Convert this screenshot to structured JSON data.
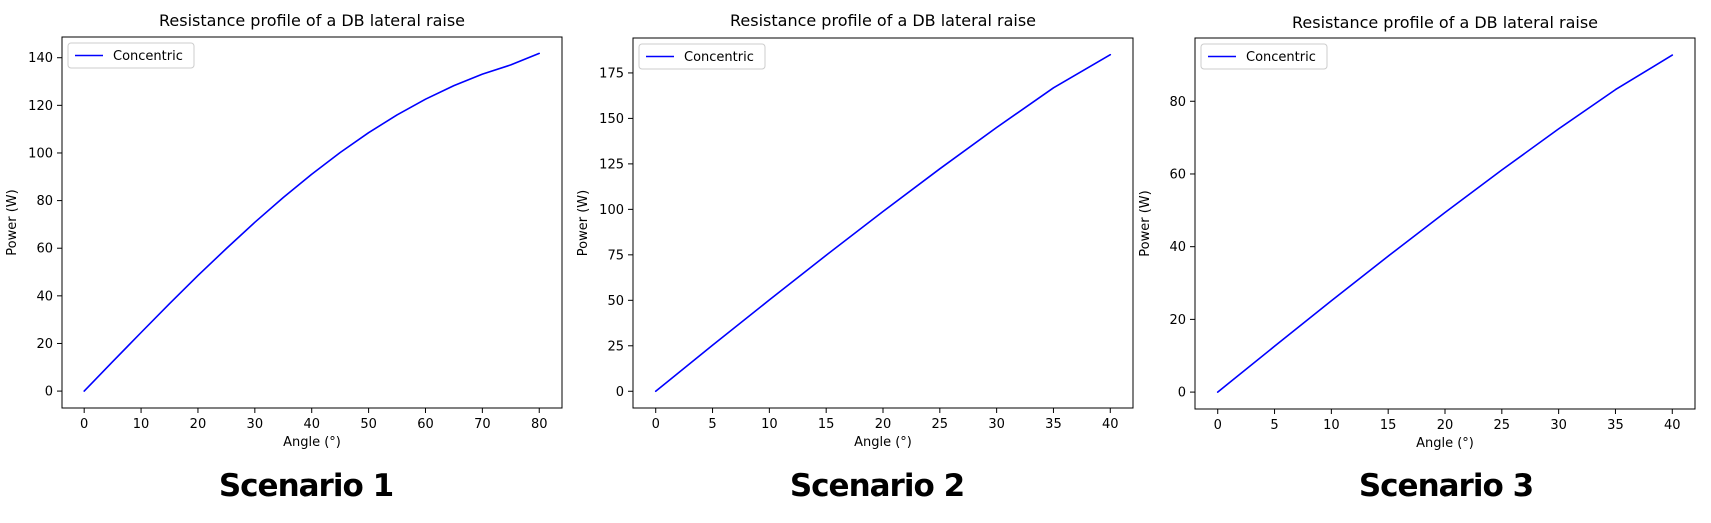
{
  "figure_title": "",
  "chart_data": [
    {
      "type": "line",
      "title": "Resistance profile of a DB lateral raise",
      "xlabel": "Angle (°)",
      "ylabel": "Power (W)",
      "xlim": [
        -3.9,
        84
      ],
      "ylim": [
        -7.1,
        148.7
      ],
      "xticks": [
        0,
        10,
        20,
        30,
        40,
        50,
        60,
        70,
        80
      ],
      "yticks": [
        0,
        20,
        40,
        60,
        80,
        100,
        120,
        140
      ],
      "legend": "upper left",
      "grid": false,
      "scenario_label": "Scenario 1",
      "series": [
        {
          "name": "Concentric",
          "color": "#0000ff",
          "x": [
            0,
            5,
            10,
            15,
            20,
            25,
            30,
            35,
            40,
            45,
            50,
            55,
            60,
            65,
            70,
            75,
            80
          ],
          "y": [
            0,
            12.35,
            24.6,
            36.7,
            48.5,
            59.9,
            70.9,
            81.3,
            91.1,
            100.2,
            108.5,
            116.0,
            122.6,
            128.3,
            133.1,
            137.0,
            141.8
          ]
        }
      ]
    },
    {
      "type": "line",
      "title": "Resistance profile of a DB lateral raise",
      "xlabel": "Angle (°)",
      "ylabel": "Power (W)",
      "xlim": [
        -2,
        42
      ],
      "ylim": [
        -9.2,
        194.2
      ],
      "xticks": [
        0,
        5,
        10,
        15,
        20,
        25,
        30,
        35,
        40
      ],
      "yticks": [
        0,
        25,
        50,
        75,
        100,
        125,
        150,
        175
      ],
      "legend": "upper left",
      "grid": false,
      "scenario_label": "Scenario 2",
      "series": [
        {
          "name": "Concentric",
          "color": "#0000ff",
          "x": [
            0,
            5,
            10,
            15,
            20,
            25,
            30,
            35,
            40
          ],
          "y": [
            0,
            25.3,
            50.2,
            74.8,
            98.8,
            122.3,
            145.0,
            166.8,
            185.0
          ]
        }
      ]
    },
    {
      "type": "line",
      "title": "Resistance profile of a DB lateral raise",
      "xlabel": "Angle (°)",
      "ylabel": "Power (W)",
      "xlim": [
        -2,
        42
      ],
      "ylim": [
        -4.65,
        97.4
      ],
      "xticks": [
        0,
        5,
        10,
        15,
        20,
        25,
        30,
        35,
        40
      ],
      "yticks": [
        0,
        20,
        40,
        60,
        80
      ],
      "legend": "upper left",
      "grid": false,
      "scenario_label": "Scenario 3",
      "series": [
        {
          "name": "Concentric",
          "color": "#0000ff",
          "x": [
            0,
            5,
            10,
            15,
            20,
            25,
            30,
            35,
            40
          ],
          "y": [
            0,
            12.6,
            25.1,
            37.4,
            49.4,
            61.1,
            72.4,
            83.2,
            92.7
          ]
        }
      ]
    }
  ]
}
